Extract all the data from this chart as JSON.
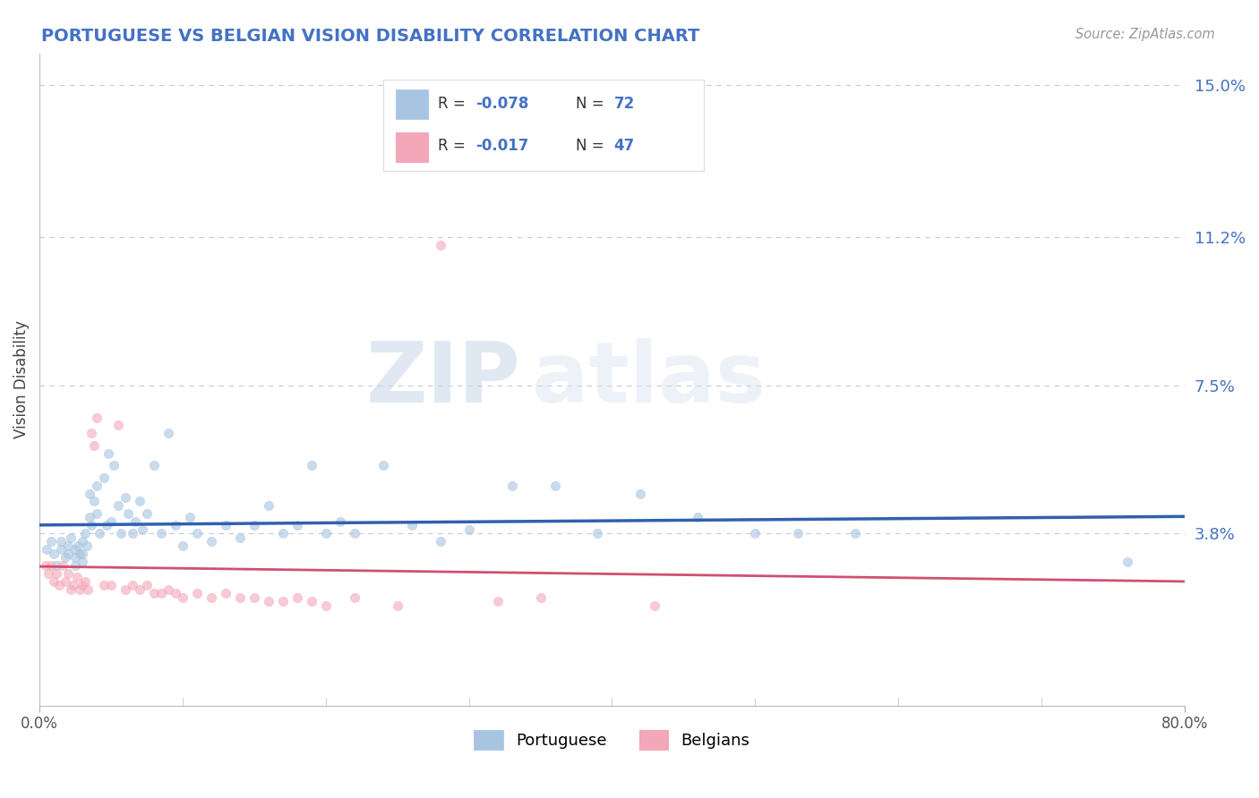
{
  "title": "PORTUGUESE VS BELGIAN VISION DISABILITY CORRELATION CHART",
  "source": "Source: ZipAtlas.com",
  "ylabel": "Vision Disability",
  "xlim": [
    0.0,
    0.8
  ],
  "ylim": [
    -0.005,
    0.158
  ],
  "ytick_vals": [
    0.038,
    0.075,
    0.112,
    0.15
  ],
  "ytick_labels": [
    "3.8%",
    "7.5%",
    "11.2%",
    "15.0%"
  ],
  "xtick_vals": [
    0.0,
    0.8
  ],
  "xtick_labels": [
    "0.0%",
    "80.0%"
  ],
  "portuguese_color": "#a8c4e0",
  "belgian_color": "#f4a7b9",
  "trend_portuguese_color": "#3060b0",
  "trend_belgian_color": "#d05070",
  "legend_R1": "R = -0.078",
  "legend_N1": "N = 72",
  "legend_R2": "R = -0.017",
  "legend_N2": "N = 47",
  "portuguese_x": [
    0.005,
    0.008,
    0.01,
    0.012,
    0.015,
    0.015,
    0.018,
    0.02,
    0.02,
    0.022,
    0.025,
    0.025,
    0.025,
    0.027,
    0.028,
    0.03,
    0.03,
    0.03,
    0.032,
    0.033,
    0.035,
    0.035,
    0.036,
    0.038,
    0.04,
    0.04,
    0.042,
    0.045,
    0.047,
    0.048,
    0.05,
    0.052,
    0.055,
    0.057,
    0.06,
    0.062,
    0.065,
    0.067,
    0.07,
    0.072,
    0.075,
    0.08,
    0.085,
    0.09,
    0.095,
    0.1,
    0.105,
    0.11,
    0.12,
    0.13,
    0.14,
    0.15,
    0.16,
    0.17,
    0.18,
    0.19,
    0.2,
    0.21,
    0.22,
    0.24,
    0.26,
    0.28,
    0.3,
    0.33,
    0.36,
    0.39,
    0.42,
    0.46,
    0.5,
    0.53,
    0.57,
    0.76
  ],
  "portuguese_y": [
    0.034,
    0.036,
    0.033,
    0.03,
    0.034,
    0.036,
    0.032,
    0.033,
    0.035,
    0.037,
    0.03,
    0.034,
    0.032,
    0.035,
    0.033,
    0.036,
    0.033,
    0.031,
    0.038,
    0.035,
    0.042,
    0.048,
    0.04,
    0.046,
    0.043,
    0.05,
    0.038,
    0.052,
    0.04,
    0.058,
    0.041,
    0.055,
    0.045,
    0.038,
    0.047,
    0.043,
    0.038,
    0.041,
    0.046,
    0.039,
    0.043,
    0.055,
    0.038,
    0.063,
    0.04,
    0.035,
    0.042,
    0.038,
    0.036,
    0.04,
    0.037,
    0.04,
    0.045,
    0.038,
    0.04,
    0.055,
    0.038,
    0.041,
    0.038,
    0.055,
    0.04,
    0.036,
    0.039,
    0.05,
    0.05,
    0.038,
    0.048,
    0.042,
    0.038,
    0.038,
    0.038,
    0.031
  ],
  "belgian_x": [
    0.004,
    0.006,
    0.008,
    0.01,
    0.012,
    0.014,
    0.016,
    0.018,
    0.02,
    0.022,
    0.024,
    0.026,
    0.028,
    0.03,
    0.032,
    0.034,
    0.036,
    0.038,
    0.04,
    0.045,
    0.05,
    0.055,
    0.06,
    0.065,
    0.07,
    0.075,
    0.08,
    0.085,
    0.09,
    0.095,
    0.1,
    0.11,
    0.12,
    0.13,
    0.14,
    0.15,
    0.16,
    0.17,
    0.18,
    0.19,
    0.2,
    0.22,
    0.25,
    0.28,
    0.32,
    0.35,
    0.43
  ],
  "belgian_y": [
    0.03,
    0.028,
    0.03,
    0.026,
    0.028,
    0.025,
    0.03,
    0.026,
    0.028,
    0.024,
    0.025,
    0.027,
    0.024,
    0.025,
    0.026,
    0.024,
    0.063,
    0.06,
    0.067,
    0.025,
    0.025,
    0.065,
    0.024,
    0.025,
    0.024,
    0.025,
    0.023,
    0.023,
    0.024,
    0.023,
    0.022,
    0.023,
    0.022,
    0.023,
    0.022,
    0.022,
    0.021,
    0.021,
    0.022,
    0.021,
    0.02,
    0.022,
    0.02,
    0.11,
    0.021,
    0.022,
    0.02
  ],
  "watermark_zip": "ZIP",
  "watermark_atlas": "atlas",
  "background_color": "#ffffff",
  "grid_color": "#c8c8d8",
  "axis_color": "#4472c4",
  "title_color": "#4472c4",
  "scatter_size": 55,
  "scatter_alpha": 0.6
}
